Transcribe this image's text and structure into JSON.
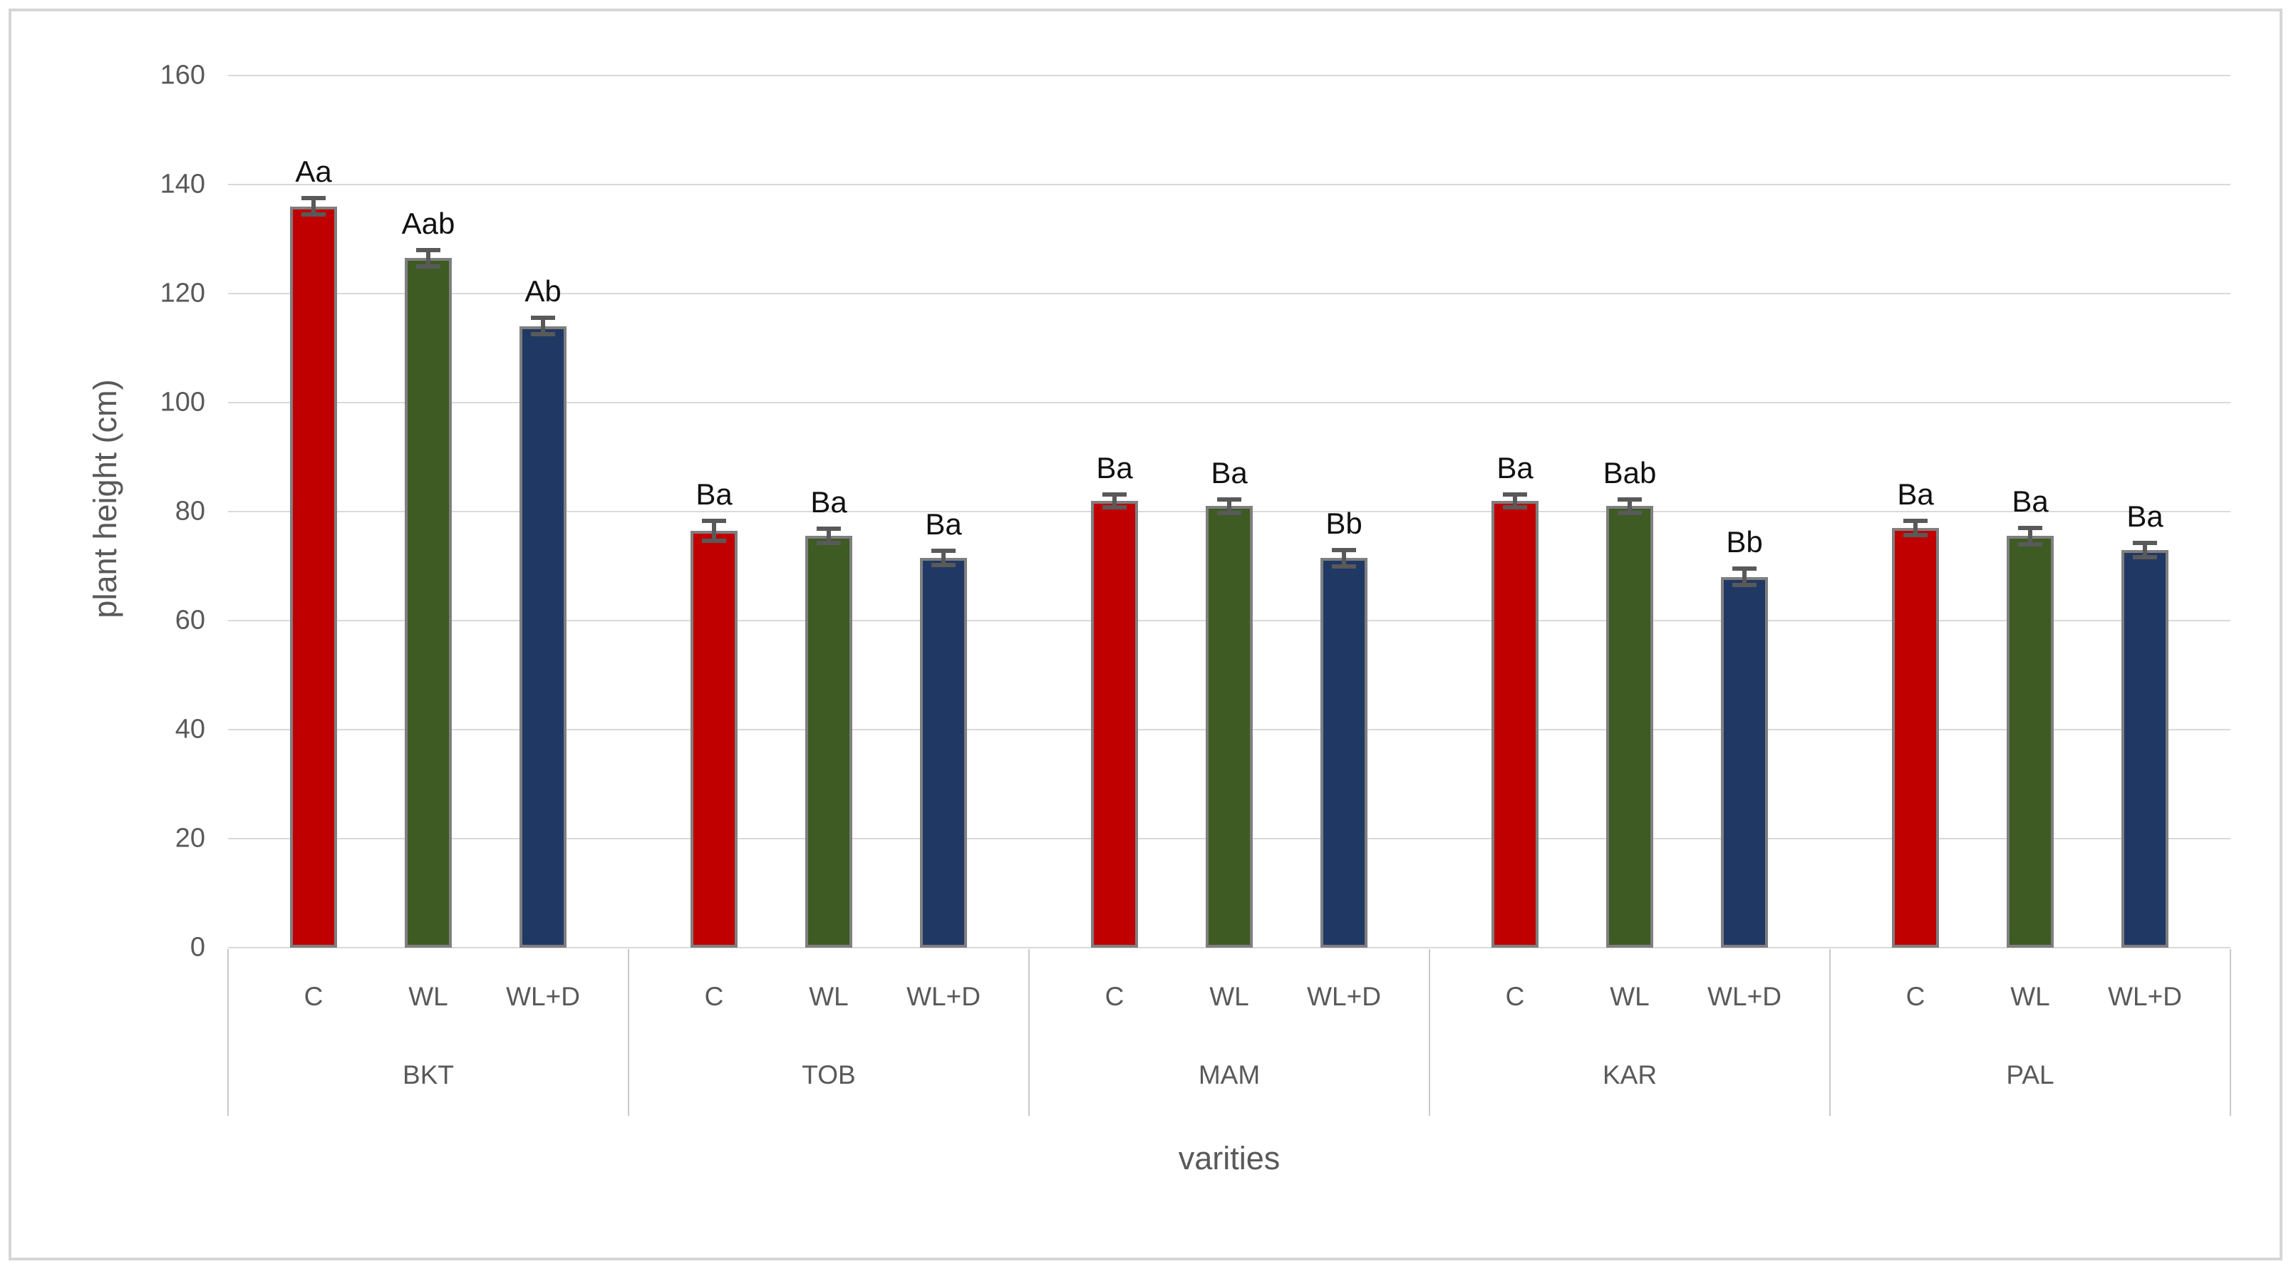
{
  "chart_data": {
    "type": "bar",
    "title": "",
    "xlabel": "varities",
    "ylabel": "plant height (cm)",
    "ylim": [
      0,
      160
    ],
    "yticks": [
      0,
      20,
      40,
      60,
      80,
      100,
      120,
      140,
      160
    ],
    "grid": "horizontal-only",
    "legend_position": "none",
    "treatments": [
      "C",
      "WL",
      "WL+D"
    ],
    "series_colors": {
      "C": "#c00000",
      "WL": "#3d5b23",
      "WL+D": "#203864"
    },
    "groups": [
      {
        "variety": "BKT",
        "bars": [
          {
            "treatment": "C",
            "value": 136,
            "error": 1.5,
            "sig_label": "Aa"
          },
          {
            "treatment": "WL",
            "value": 126.5,
            "error": 1.5,
            "sig_label": "Aab"
          },
          {
            "treatment": "WL+D",
            "value": 114,
            "error": 1.5,
            "sig_label": "Ab"
          }
        ]
      },
      {
        "variety": "TOB",
        "bars": [
          {
            "treatment": "C",
            "value": 76.5,
            "error": 1.8,
            "sig_label": "Ba"
          },
          {
            "treatment": "WL",
            "value": 75.5,
            "error": 1.3,
            "sig_label": "Ba"
          },
          {
            "treatment": "WL+D",
            "value": 71.5,
            "error": 1.3,
            "sig_label": "Ba"
          }
        ]
      },
      {
        "variety": "MAM",
        "bars": [
          {
            "treatment": "C",
            "value": 82,
            "error": 1.2,
            "sig_label": "Ba"
          },
          {
            "treatment": "WL",
            "value": 81,
            "error": 1.2,
            "sig_label": "Ba"
          },
          {
            "treatment": "WL+D",
            "value": 71.5,
            "error": 1.5,
            "sig_label": "Bb"
          }
        ]
      },
      {
        "variety": "KAR",
        "bars": [
          {
            "treatment": "C",
            "value": 82,
            "error": 1.2,
            "sig_label": "Ba"
          },
          {
            "treatment": "WL",
            "value": 81,
            "error": 1.2,
            "sig_label": "Bab"
          },
          {
            "treatment": "WL+D",
            "value": 68,
            "error": 1.5,
            "sig_label": "Bb"
          }
        ]
      },
      {
        "variety": "PAL",
        "bars": [
          {
            "treatment": "C",
            "value": 77,
            "error": 1.3,
            "sig_label": "Ba"
          },
          {
            "treatment": "WL",
            "value": 75.5,
            "error": 1.5,
            "sig_label": "Ba"
          },
          {
            "treatment": "WL+D",
            "value": 73,
            "error": 1.3,
            "sig_label": "Ba"
          }
        ]
      }
    ],
    "style_colors": {
      "gridline": "#d9d9d9",
      "bar_border": "#7f7f7f",
      "error_bar": "#595959",
      "tick_label": "#595959",
      "sig_label": "#111111",
      "chart_border": "#d6d6d6"
    }
  }
}
